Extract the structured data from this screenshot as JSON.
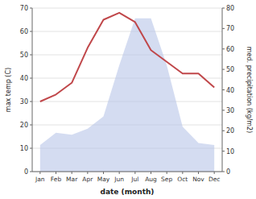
{
  "chart_data": {
    "type": "line",
    "xlabel": "date (month)",
    "ylabel": "max temp (C)",
    "y2label": "med. precipitation (kg/m2)",
    "categories": [
      "Jan",
      "Feb",
      "Mar",
      "Apr",
      "May",
      "Jun",
      "Jul",
      "Aug",
      "Sep",
      "Oct",
      "Nov",
      "Dec"
    ],
    "series": [
      {
        "type": "area",
        "axis": "y2",
        "color": "#b8c4e8",
        "values": [
          13,
          19,
          18,
          21,
          27,
          52,
          75,
          75,
          52,
          22,
          14,
          13
        ]
      },
      {
        "type": "line",
        "color": "#c0474a",
        "values": [
          30,
          33,
          38,
          53,
          65,
          68,
          64,
          52,
          47,
          42,
          42,
          36
        ]
      }
    ],
    "ylim": [
      0,
      70
    ],
    "yticks": [
      0,
      10,
      20,
      30,
      40,
      50,
      60,
      70
    ],
    "y2lim": [
      0,
      80
    ],
    "y2ticks": [
      0,
      10,
      20,
      30,
      40,
      50,
      60,
      70,
      80
    ],
    "grid": true
  }
}
